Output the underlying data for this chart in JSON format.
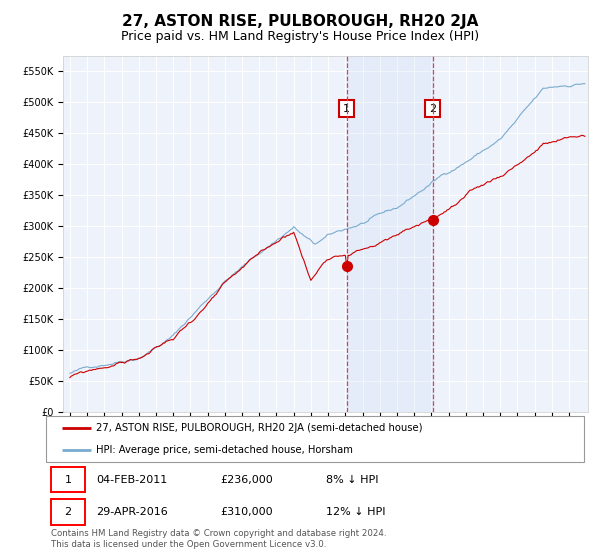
{
  "title": "27, ASTON RISE, PULBOROUGH, RH20 2JA",
  "subtitle": "Price paid vs. HM Land Registry's House Price Index (HPI)",
  "ylim": [
    0,
    575000
  ],
  "yticks": [
    0,
    50000,
    100000,
    150000,
    200000,
    250000,
    300000,
    350000,
    400000,
    450000,
    500000,
    550000
  ],
  "ytick_labels": [
    "£0",
    "£50K",
    "£100K",
    "£150K",
    "£200K",
    "£250K",
    "£300K",
    "£350K",
    "£400K",
    "£450K",
    "£500K",
    "£550K"
  ],
  "background_color": "#ffffff",
  "plot_bg_color": "#eef2fb",
  "grid_color": "#ffffff",
  "red_line_color": "#cc0000",
  "blue_line_color": "#7aabce",
  "vline_color": "#dd4444",
  "marker_box_edge": "#cc0000",
  "idx1": 193,
  "idx2": 253,
  "marker1_value": 236000,
  "marker2_value": 310000,
  "legend_text_red": "27, ASTON RISE, PULBOROUGH, RH20 2JA (semi-detached house)",
  "legend_text_blue": "HPI: Average price, semi-detached house, Horsham",
  "footer": "Contains HM Land Registry data © Crown copyright and database right 2024.\nThis data is licensed under the Open Government Licence v3.0.",
  "title_fontsize": 11,
  "subtitle_fontsize": 9,
  "tick_fontsize": 7,
  "n_months": 360,
  "start_year": 1995,
  "seed": 12
}
